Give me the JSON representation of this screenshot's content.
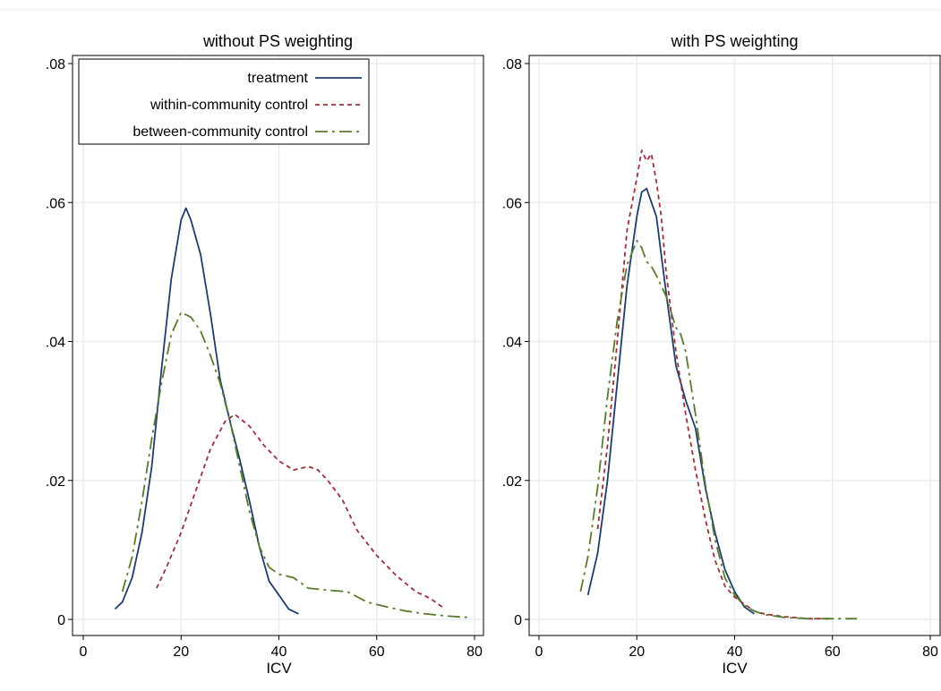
{
  "chart_data": [
    {
      "type": "line",
      "title": "without PS weighting",
      "xlabel": "ICV",
      "ylabel": "",
      "xlim": [
        0,
        80
      ],
      "ylim": [
        0,
        0.08
      ],
      "xticks": [
        0,
        20,
        40,
        60,
        80
      ],
      "xtick_labels": [
        "0",
        "20",
        "40",
        "60",
        "80"
      ],
      "yticks": [
        0,
        0.02,
        0.04,
        0.06,
        0.08
      ],
      "ytick_labels": [
        "0",
        ".02",
        ".04",
        ".06",
        ".08"
      ],
      "grid": true,
      "legend": {
        "position": "top-left",
        "entries": [
          "treatment",
          "within-community control",
          "between-community control"
        ]
      },
      "series": [
        {
          "name": "treatment",
          "color": "#1f3d6b",
          "dash": "solid",
          "x": [
            6.5,
            8,
            10,
            12,
            14,
            16,
            18,
            20,
            21,
            22,
            24,
            26,
            28,
            30,
            32,
            34,
            36,
            38,
            40,
            42,
            44
          ],
          "y": [
            0.0015,
            0.0025,
            0.006,
            0.0125,
            0.022,
            0.036,
            0.049,
            0.0575,
            0.0592,
            0.0575,
            0.0525,
            0.044,
            0.0345,
            0.0285,
            0.023,
            0.017,
            0.0105,
            0.0055,
            0.0035,
            0.0015,
            0.0008
          ]
        },
        {
          "name": "within-community control",
          "color": "#9b2f3a",
          "dash": "dashed",
          "x": [
            15,
            17,
            20,
            23,
            26,
            29,
            31,
            34,
            37,
            40,
            43,
            46,
            48,
            50,
            53,
            56,
            60,
            64,
            68,
            71,
            74
          ],
          "y": [
            0.0045,
            0.0075,
            0.0125,
            0.0185,
            0.0245,
            0.0285,
            0.0295,
            0.0278,
            0.025,
            0.0228,
            0.0215,
            0.022,
            0.0215,
            0.02,
            0.0172,
            0.0128,
            0.0092,
            0.0063,
            0.004,
            0.003,
            0.0015
          ]
        },
        {
          "name": "between-community control",
          "color": "#5a7a2e",
          "dash": "longdash",
          "x": [
            8,
            10,
            12,
            14,
            16,
            18,
            20,
            22,
            24,
            26,
            28,
            30,
            32,
            34,
            36,
            38,
            40,
            43,
            46,
            50,
            54,
            58,
            62,
            66,
            70,
            74,
            78.5
          ],
          "y": [
            0.004,
            0.009,
            0.017,
            0.026,
            0.034,
            0.041,
            0.0442,
            0.0435,
            0.0415,
            0.038,
            0.034,
            0.0285,
            0.022,
            0.0155,
            0.0105,
            0.0075,
            0.0065,
            0.006,
            0.0045,
            0.0042,
            0.004,
            0.0025,
            0.0018,
            0.0012,
            0.0008,
            0.0005,
            0.0003
          ]
        }
      ]
    },
    {
      "type": "line",
      "title": "with PS weighting",
      "xlabel": "ICV",
      "ylabel": "",
      "xlim": [
        0,
        80
      ],
      "ylim": [
        0,
        0.08
      ],
      "xticks": [
        0,
        20,
        40,
        60,
        80
      ],
      "xtick_labels": [
        "0",
        "20",
        "40",
        "60",
        "80"
      ],
      "yticks": [
        0,
        0.02,
        0.04,
        0.06,
        0.08
      ],
      "ytick_labels": [
        "0",
        ".02",
        ".04",
        ".06",
        ".08"
      ],
      "grid": true,
      "series": [
        {
          "name": "treatment",
          "color": "#1f3d6b",
          "dash": "solid",
          "x": [
            10,
            12,
            14,
            16,
            18,
            20,
            21,
            22,
            24,
            26,
            28,
            30,
            32,
            34,
            36,
            38,
            40,
            42,
            44
          ],
          "y": [
            0.0035,
            0.0095,
            0.02,
            0.034,
            0.048,
            0.058,
            0.0615,
            0.062,
            0.058,
            0.047,
            0.0365,
            0.0315,
            0.0275,
            0.019,
            0.0125,
            0.0072,
            0.004,
            0.0018,
            0.0008
          ]
        },
        {
          "name": "within-community control",
          "color": "#9b2f3a",
          "dash": "dashed",
          "x": [
            12,
            14,
            16,
            18,
            20,
            21,
            22,
            23,
            24,
            25,
            26,
            28,
            30,
            32,
            34,
            36,
            38,
            40,
            42,
            44,
            46,
            50,
            55,
            60
          ],
          "y": [
            0.013,
            0.025,
            0.04,
            0.056,
            0.0635,
            0.0675,
            0.066,
            0.067,
            0.063,
            0.058,
            0.05,
            0.0385,
            0.0295,
            0.0215,
            0.0145,
            0.0085,
            0.0048,
            0.0032,
            0.0022,
            0.0012,
            0.0008,
            0.0004,
            0.0001,
            0.0001
          ]
        },
        {
          "name": "between-community control",
          "color": "#5a7a2e",
          "dash": "longdash",
          "x": [
            8.5,
            10,
            12,
            14,
            16,
            18,
            20,
            21,
            22,
            23,
            24,
            26,
            28,
            29,
            30,
            32,
            34,
            36,
            38,
            40,
            42,
            44,
            46,
            50,
            55,
            60,
            65
          ],
          "y": [
            0.004,
            0.009,
            0.019,
            0.032,
            0.043,
            0.051,
            0.0545,
            0.0535,
            0.0515,
            0.0508,
            0.0495,
            0.0465,
            0.042,
            0.041,
            0.0385,
            0.0295,
            0.0195,
            0.0115,
            0.006,
            0.0035,
            0.002,
            0.0012,
            0.0007,
            0.0003,
            0.0001,
            0.0001,
            0.0001
          ]
        }
      ]
    }
  ]
}
